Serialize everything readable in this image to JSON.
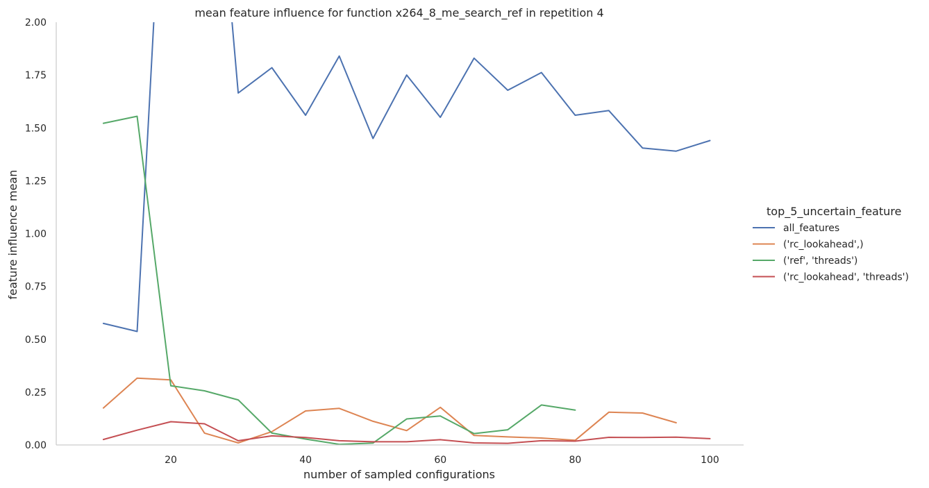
{
  "chart_data": {
    "type": "line",
    "title": "mean feature influence for function x264_8_me_search_ref in repetition 4",
    "xlabel": "number of sampled configurations",
    "ylabel": "feature influence mean",
    "xlim": [
      3,
      105
    ],
    "ylim": [
      0,
      2.0
    ],
    "xticks": [
      "20",
      "40",
      "60",
      "80",
      "100"
    ],
    "yticks": [
      "0.00",
      "0.25",
      "0.50",
      "0.75",
      "1.00",
      "1.25",
      "1.50",
      "1.75",
      "2.00"
    ],
    "grid": false,
    "legend": {
      "title": "top_5_uncertain_feature",
      "placement": "right"
    },
    "series": [
      {
        "name": "all_features",
        "color": "#4c72b0",
        "x": [
          10,
          15,
          20,
          25,
          30,
          35,
          40,
          45,
          50,
          55,
          60,
          65,
          70,
          75,
          80,
          85,
          90,
          95,
          100
        ],
        "y": [
          0.575,
          0.537,
          3.5,
          3.5,
          1.665,
          1.785,
          1.56,
          1.84,
          1.45,
          1.75,
          1.55,
          1.83,
          1.678,
          1.762,
          1.56,
          1.582,
          1.405,
          1.39,
          1.44
        ]
      },
      {
        "name": "('rc_lookahead',)",
        "color": "#dd8452",
        "x": [
          10,
          15,
          20,
          25,
          30,
          35,
          40,
          45,
          50,
          55,
          60,
          65,
          70,
          75,
          80,
          85,
          90,
          95
        ],
        "y": [
          0.175,
          0.316,
          0.308,
          0.056,
          0.01,
          0.063,
          0.161,
          0.173,
          0.112,
          0.068,
          0.178,
          0.045,
          0.038,
          0.033,
          0.022,
          0.155,
          0.151,
          0.105
        ]
      },
      {
        "name": "('ref', 'threads')",
        "color": "#55a868",
        "x": [
          10,
          15,
          20,
          25,
          30,
          35,
          40,
          45,
          50,
          55,
          60,
          65,
          70,
          75,
          80
        ],
        "y": [
          1.522,
          1.555,
          0.28,
          0.256,
          0.213,
          0.056,
          0.028,
          0.003,
          0.009,
          0.123,
          0.137,
          0.054,
          0.072,
          0.189,
          0.165
        ]
      },
      {
        "name": "('rc_lookahead', 'threads')",
        "color": "#c44e52",
        "x": [
          10,
          15,
          20,
          25,
          30,
          35,
          40,
          45,
          50,
          55,
          60,
          65,
          70,
          75,
          80,
          85,
          90,
          95,
          100
        ],
        "y": [
          0.026,
          0.07,
          0.11,
          0.1,
          0.02,
          0.043,
          0.035,
          0.02,
          0.015,
          0.015,
          0.025,
          0.01,
          0.008,
          0.02,
          0.018,
          0.036,
          0.035,
          0.037,
          0.03
        ]
      }
    ]
  }
}
